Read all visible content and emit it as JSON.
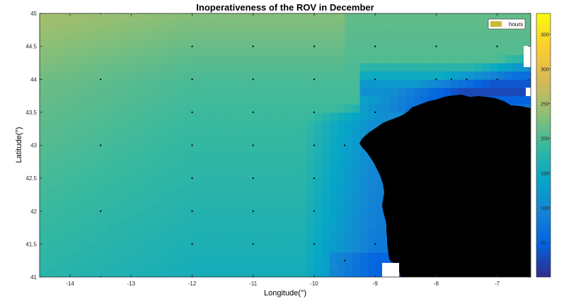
{
  "chart_data": {
    "type": "heatmap",
    "title": "Inoperativeness of the ROV in December",
    "xlabel": "Longitude(°)",
    "ylabel": "Latitude(°)",
    "xlim": [
      -14.5,
      -6.45
    ],
    "ylim": [
      41,
      45
    ],
    "xticks": [
      -14,
      -13,
      -12,
      -11,
      -10,
      -9,
      -8,
      -7
    ],
    "yticks": [
      41,
      41.5,
      42,
      42.5,
      43,
      43.5,
      44,
      44.5,
      45
    ],
    "xtick_labels": [
      "-14",
      "-13",
      "-12",
      "-11",
      "-10",
      "-9",
      "-8",
      "-7"
    ],
    "ytick_labels": [
      "41",
      "41.5",
      "42",
      "42.5",
      "43",
      "43.5",
      "44",
      "44.5",
      "45"
    ],
    "legend": {
      "label": "hours",
      "color": "#c8b93a",
      "position": "top-right"
    },
    "colorbar": {
      "colormap": "parula",
      "min": 0,
      "max": 380,
      "ticks": [
        50,
        100,
        150,
        200,
        250,
        300,
        350
      ],
      "tick_labels": [
        "50",
        "100",
        "150",
        "200",
        "250",
        "300",
        "350"
      ]
    },
    "z_unit": "hours",
    "land_color": "#000000",
    "grid_points": [
      {
        "lon": -13.5,
        "lat": 45
      },
      {
        "lon": -12,
        "lat": 45
      },
      {
        "lon": -11,
        "lat": 45
      },
      {
        "lon": -10,
        "lat": 45
      },
      {
        "lon": -9,
        "lat": 45
      },
      {
        "lon": -8,
        "lat": 45
      },
      {
        "lon": -7,
        "lat": 45
      },
      {
        "lon": -12,
        "lat": 44.5
      },
      {
        "lon": -11,
        "lat": 44.5
      },
      {
        "lon": -10,
        "lat": 44.5
      },
      {
        "lon": -9,
        "lat": 44.5
      },
      {
        "lon": -8,
        "lat": 44.5
      },
      {
        "lon": -7,
        "lat": 44.5
      },
      {
        "lon": -14.5,
        "lat": 44
      },
      {
        "lon": -13.5,
        "lat": 44
      },
      {
        "lon": -12,
        "lat": 44
      },
      {
        "lon": -11,
        "lat": 44
      },
      {
        "lon": -10,
        "lat": 44
      },
      {
        "lon": -9,
        "lat": 44
      },
      {
        "lon": -8,
        "lat": 44
      },
      {
        "lon": -7.75,
        "lat": 44
      },
      {
        "lon": -7.5,
        "lat": 44
      },
      {
        "lon": -7,
        "lat": 44
      },
      {
        "lon": -12,
        "lat": 43.5
      },
      {
        "lon": -11,
        "lat": 43.5
      },
      {
        "lon": -10,
        "lat": 43.5
      },
      {
        "lon": -9,
        "lat": 43.5
      },
      {
        "lon": -13.5,
        "lat": 43
      },
      {
        "lon": -12,
        "lat": 43
      },
      {
        "lon": -11,
        "lat": 43
      },
      {
        "lon": -10,
        "lat": 43
      },
      {
        "lon": -9.5,
        "lat": 43
      },
      {
        "lon": -12,
        "lat": 42.5
      },
      {
        "lon": -11,
        "lat": 42.5
      },
      {
        "lon": -10,
        "lat": 42.5
      },
      {
        "lon": -13.5,
        "lat": 42
      },
      {
        "lon": -12,
        "lat": 42
      },
      {
        "lon": -11,
        "lat": 42
      },
      {
        "lon": -10,
        "lat": 42
      },
      {
        "lon": -12,
        "lat": 41.5
      },
      {
        "lon": -11,
        "lat": 41.5
      },
      {
        "lon": -10,
        "lat": 41.5
      },
      {
        "lon": -9,
        "lat": 41.5
      },
      {
        "lon": -9.5,
        "lat": 41.25
      },
      {
        "lon": -13.5,
        "lat": 41
      },
      {
        "lon": -12,
        "lat": 41
      },
      {
        "lon": -11,
        "lat": 41
      },
      {
        "lon": -10,
        "lat": 41
      }
    ]
  }
}
